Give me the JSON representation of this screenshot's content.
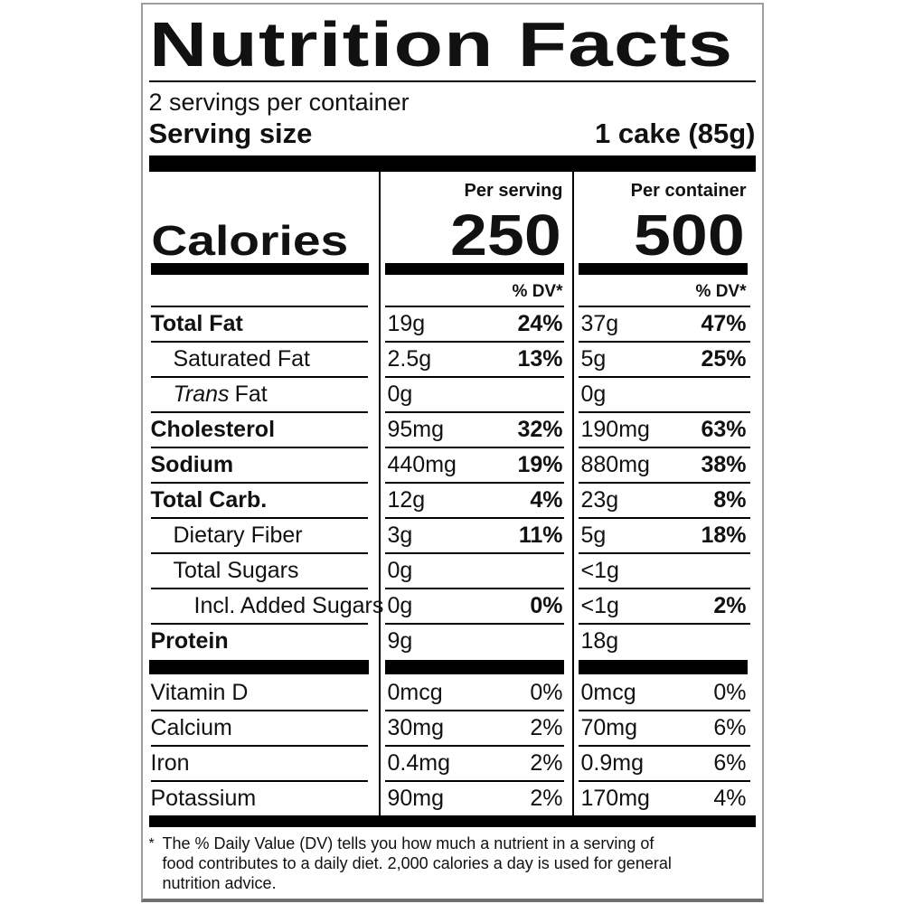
{
  "label": {
    "title": "Nutrition Facts",
    "servings_per_container": "2 servings per container",
    "serving_size": {
      "label": "Serving size",
      "value": "1 cake (85g)"
    },
    "column_headers": {
      "per_serving": "Per serving",
      "per_container": "Per container"
    },
    "calories": {
      "label": "Calories",
      "per_serving": "250",
      "per_container": "500"
    },
    "dv_header": "% DV*",
    "nutrients": [
      {
        "name": "Total Fat",
        "serving_amount": "19g",
        "serving_dv": "24%",
        "container_amount": "37g",
        "container_dv": "47%"
      },
      {
        "name": "Saturated Fat",
        "serving_amount": "2.5g",
        "serving_dv": "13%",
        "container_amount": "5g",
        "container_dv": "25%"
      },
      {
        "name_italic": "Trans",
        "name": "Fat",
        "serving_amount": "0g",
        "serving_dv": "",
        "container_amount": "0g",
        "container_dv": ""
      },
      {
        "name": "Cholesterol",
        "serving_amount": "95mg",
        "serving_dv": "32%",
        "container_amount": "190mg",
        "container_dv": "63%"
      },
      {
        "name": "Sodium",
        "serving_amount": "440mg",
        "serving_dv": "19%",
        "container_amount": "880mg",
        "container_dv": "38%"
      },
      {
        "name": "Total Carb.",
        "serving_amount": "12g",
        "serving_dv": "4%",
        "container_amount": "23g",
        "container_dv": "8%"
      },
      {
        "name": "Dietary Fiber",
        "serving_amount": "3g",
        "serving_dv": "11%",
        "container_amount": "5g",
        "container_dv": "18%"
      },
      {
        "name": "Total Sugars",
        "serving_amount": "0g",
        "serving_dv": "",
        "container_amount": "<1g",
        "container_dv": ""
      },
      {
        "name": "Incl. Added Sugars",
        "serving_amount": "0g",
        "serving_dv": "0%",
        "container_amount": "<1g",
        "container_dv": "2%"
      },
      {
        "name": "Protein",
        "serving_amount": "9g",
        "serving_dv": "",
        "container_amount": "18g",
        "container_dv": ""
      }
    ],
    "micronutrients": [
      {
        "name": "Vitamin D",
        "serving_amount": "0mcg",
        "serving_dv": "0%",
        "container_amount": "0mcg",
        "container_dv": "0%"
      },
      {
        "name": "Calcium",
        "serving_amount": "30mg",
        "serving_dv": "2%",
        "container_amount": "70mg",
        "container_dv": "6%"
      },
      {
        "name": "Iron",
        "serving_amount": "0.4mg",
        "serving_dv": "2%",
        "container_amount": "0.9mg",
        "container_dv": "6%"
      },
      {
        "name": "Potassium",
        "serving_amount": "90mg",
        "serving_dv": "2%",
        "container_amount": "170mg",
        "container_dv": "4%"
      }
    ],
    "footnote": {
      "marker": "*",
      "lines": [
        "The % Daily Value (DV) tells you how much a nutrient in a serving of",
        "food contributes to a daily diet. 2,000 calories a day is used for general",
        "nutrition advice."
      ]
    },
    "colors": {
      "text": "#111111",
      "rule": "#000000",
      "label_border": "#9e9e9e"
    }
  }
}
